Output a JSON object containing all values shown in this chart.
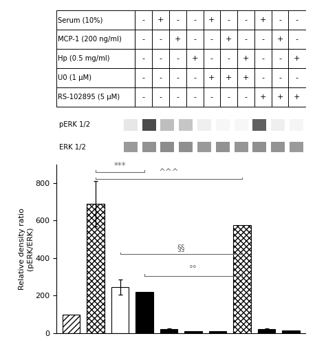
{
  "bar_values": [
    100,
    690,
    245,
    220,
    20,
    10,
    10,
    575,
    20,
    15
  ],
  "bar_errors": [
    0,
    120,
    40,
    0,
    5,
    0,
    0,
    0,
    5,
    0
  ],
  "bar_patterns": [
    "hatch_diag",
    "hatch_check",
    "white_open",
    "solid_black",
    "solid_dark",
    "solid_dark",
    "solid_dark",
    "hatch_check",
    "solid_dark",
    "solid_dark"
  ],
  "bar_colors": [
    "white",
    "white",
    "white",
    "black",
    "black",
    "black",
    "black",
    "white",
    "black",
    "black"
  ],
  "bar_edgecolors": [
    "black",
    "black",
    "black",
    "black",
    "black",
    "black",
    "black",
    "black",
    "black",
    "black"
  ],
  "ylabel": "Relative density ratio\n(pERK/ERK)",
  "ylim": [
    0,
    900
  ],
  "yticks": [
    0,
    200,
    400,
    600,
    800
  ],
  "table_rows": [
    "Serum (10%)",
    "MCP-1 (200 ng/ml)",
    "Hp (0.5 mg/ml)",
    "U0 (1 μM)",
    "RS-102895 (5 μM)"
  ],
  "table_data": [
    [
      "-",
      "+",
      "-",
      "-",
      "+",
      "-",
      "-",
      "+",
      "-",
      "-"
    ],
    [
      "-",
      "-",
      "+",
      "-",
      "-",
      "+",
      "-",
      "-",
      "+",
      "-"
    ],
    [
      "-",
      "-",
      "-",
      "+",
      "-",
      "-",
      "+",
      "-",
      "-",
      "+"
    ],
    [
      "-",
      "-",
      "-",
      "-",
      "+",
      "+",
      "+",
      "-",
      "-",
      "-"
    ],
    [
      "-",
      "-",
      "-",
      "-",
      "-",
      "-",
      "-",
      "+",
      "+",
      "+"
    ]
  ],
  "perk_intensities": [
    0.12,
    0.88,
    0.32,
    0.28,
    0.08,
    0.04,
    0.04,
    0.78,
    0.08,
    0.05
  ],
  "erk_intensities": [
    0.72,
    0.78,
    0.82,
    0.8,
    0.72,
    0.78,
    0.75,
    0.8,
    0.76,
    0.72
  ],
  "background_color": "#ffffff"
}
